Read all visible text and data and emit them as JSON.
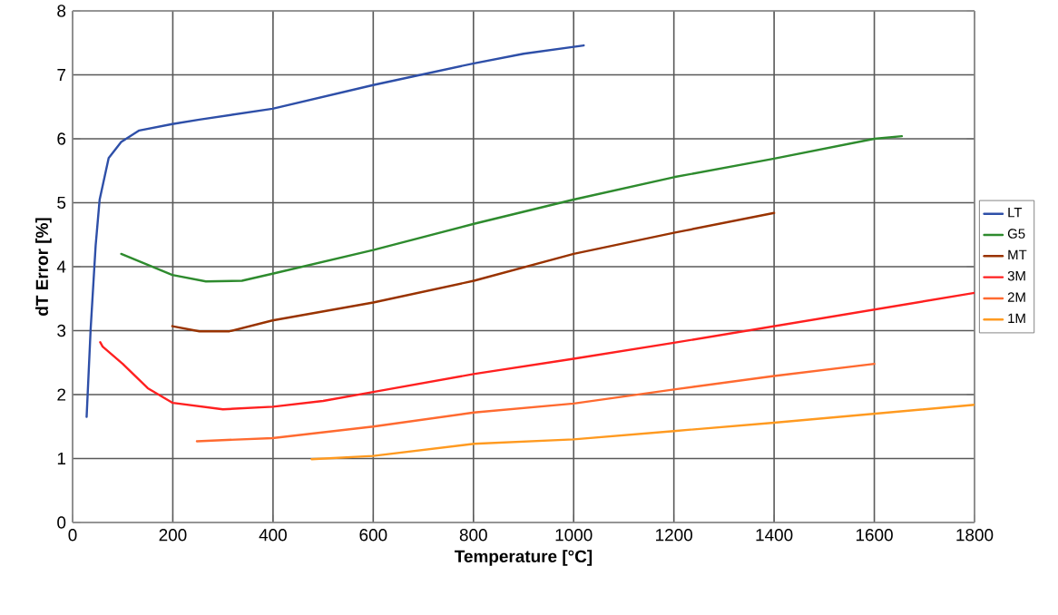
{
  "chart_data": {
    "type": "line",
    "xlabel": "Temperature [°C]",
    "ylabel": "dT Error [%]",
    "xlim": [
      0,
      1800
    ],
    "ylim": [
      0,
      8
    ],
    "xticks": [
      0,
      200,
      400,
      600,
      800,
      1000,
      1200,
      1400,
      1600,
      1800
    ],
    "yticks": [
      0,
      1,
      2,
      3,
      4,
      5,
      6,
      7,
      8
    ],
    "grid": true,
    "legend": "right",
    "marker": "none",
    "line_style": "solid",
    "series": [
      {
        "name": "LT",
        "color": "#2e4fa8",
        "x": [
          28,
          36,
          46,
          54,
          72,
          97,
          133,
          199,
          253,
          399,
          600,
          801,
          900,
          1020
        ],
        "values": [
          1.65,
          3.02,
          4.33,
          5.05,
          5.7,
          5.95,
          6.13,
          6.23,
          6.3,
          6.47,
          6.84,
          7.18,
          7.33,
          7.46
        ]
      },
      {
        "name": "G5",
        "color": "#2e8b2e",
        "x": [
          97,
          199,
          266,
          338,
          399,
          600,
          801,
          1000,
          1200,
          1400,
          1600,
          1655
        ],
        "values": [
          4.2,
          3.87,
          3.77,
          3.78,
          3.89,
          4.26,
          4.67,
          5.05,
          5.4,
          5.69,
          6.0,
          6.04
        ]
      },
      {
        "name": "MT",
        "color": "#993300",
        "x": [
          199,
          253,
          313,
          399,
          600,
          801,
          1000,
          1200,
          1400
        ],
        "values": [
          3.07,
          2.99,
          2.99,
          3.16,
          3.44,
          3.78,
          4.2,
          4.53,
          4.84
        ]
      },
      {
        "name": "3M",
        "color": "#ff2020",
        "x": [
          55,
          60,
          100,
          150,
          200,
          300,
          400,
          500,
          600,
          800,
          1000,
          1200,
          1400,
          1600,
          1800
        ],
        "values": [
          2.82,
          2.75,
          2.48,
          2.1,
          1.87,
          1.77,
          1.81,
          1.9,
          2.04,
          2.32,
          2.56,
          2.81,
          3.07,
          3.33,
          3.59
        ]
      },
      {
        "name": "2M",
        "color": "#ff6a30",
        "x": [
          248,
          399,
          600,
          801,
          1000,
          1200,
          1400,
          1600
        ],
        "values": [
          1.27,
          1.32,
          1.5,
          1.72,
          1.86,
          2.08,
          2.29,
          2.48
        ]
      },
      {
        "name": "1M",
        "color": "#ff9a20",
        "x": [
          477,
          600,
          801,
          1000,
          1200,
          1400,
          1600,
          1800
        ],
        "values": [
          0.99,
          1.04,
          1.23,
          1.3,
          1.43,
          1.56,
          1.7,
          1.84
        ]
      }
    ]
  }
}
